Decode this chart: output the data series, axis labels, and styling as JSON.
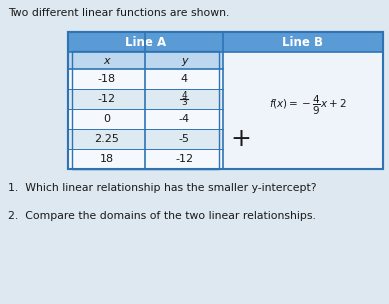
{
  "title": "Two different linear functions are shown.",
  "line_a_header": "Line A",
  "line_b_header": "Line B",
  "col_x": "x",
  "col_y": "y",
  "table_data": [
    [
      "-18",
      "4"
    ],
    [
      "-12",
      "4/3"
    ],
    [
      "0",
      "-4"
    ],
    [
      "2.25",
      "-5"
    ],
    [
      "18",
      "-12"
    ]
  ],
  "question1": "1.  Which linear relationship has the smaller y-intercept?",
  "question2": "2.  Compare the domains of the two linear relationships.",
  "header_bg": "#5b9bd5",
  "header_text": "#ffffff",
  "subheader_bg": "#bdd7ee",
  "row_bg_alt": "#deeaf1",
  "row_bg_white": "#f5f8fc",
  "table_border": "#2e74b5",
  "line_b_bg": "#eef4f9",
  "body_bg": "#dde8f0",
  "text_color": "#1a1a1a"
}
